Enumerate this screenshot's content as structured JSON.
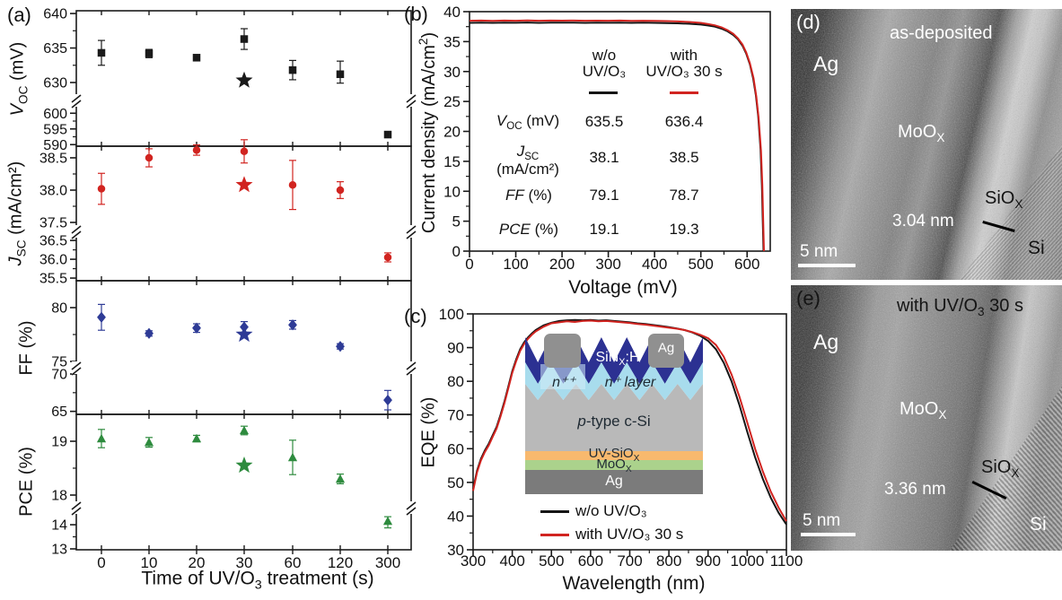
{
  "figure": {
    "panel_labels": {
      "a": "(a)",
      "b": "(b)",
      "c": "(c)",
      "d": "(d)",
      "e": "(e)"
    }
  },
  "panel_a": {
    "x_title": {
      "pre": "Time of UV/O",
      "sub": "3",
      "post": " treatment (s)"
    },
    "axis_titles": {
      "voc": {
        "main": "V",
        "sub": "OC",
        "post": " (mV)"
      },
      "jsc": {
        "main": "J",
        "sub": "SC",
        "post": " (mA/cm²)"
      },
      "ff": {
        "main": "FF",
        "sub": "",
        "post": " (%)"
      },
      "pce": {
        "main": "PCE",
        "sub": "",
        "post": " (%)"
      }
    }
  },
  "panel_b": {
    "x_title": "Voltage (mV)",
    "y_title": {
      "pre": "Current density (mA/cm",
      "sup": "2",
      "post": ")"
    },
    "table": {
      "col_headers": [
        {
          "line1": "w/o",
          "line2": "UV/O₃"
        },
        {
          "line1": "with",
          "line2": "UV/O₃ 30 s"
        }
      ],
      "rows": [
        {
          "label": {
            "main": "V",
            "sub": "OC",
            "post": " (mV)"
          },
          "line2": "",
          "v1": "635.5",
          "v2": "636.4"
        },
        {
          "label": {
            "main": "J",
            "sub": "SC",
            "post": ""
          },
          "line2": "(mA/cm²)",
          "v1": "38.1",
          "v2": "38.5"
        },
        {
          "label": {
            "main": "FF",
            "sub": "",
            "post": " (%)"
          },
          "line2": "",
          "v1": "79.1",
          "v2": "78.7"
        },
        {
          "label": {
            "main": "PCE",
            "sub": "",
            "post": " (%)"
          },
          "line2": "",
          "v1": "19.1",
          "v2": "19.3"
        }
      ]
    }
  },
  "panel_c": {
    "x_title": "Wavelength (nm)",
    "y_title": "EQE (%)",
    "legend": [
      {
        "label": "w/o UV/O₃",
        "color": "#151515"
      },
      {
        "label": "with UV/O₃ 30 s",
        "color": "#d12420"
      }
    ],
    "inset": {
      "ag_top": "Ag",
      "sin": {
        "pre": "SiN",
        "sub": "X",
        "post": ":H"
      },
      "npp": "n⁺⁺",
      "np": "n⁺ layer",
      "ptype": {
        "pre": "p",
        "post": "-type c-Si"
      },
      "uvsio": {
        "pre": "UV-SiO",
        "sub": "X",
        "post": ""
      },
      "moo": {
        "pre": "MoO",
        "sub": "X",
        "post": ""
      },
      "ag_bottom": "Ag",
      "colors": {
        "ag_contact": "#909090",
        "sin": "#2c3192",
        "nplus": "#a8dced",
        "npp_patch": "#d3edf8",
        "si": "#b9b9b9",
        "uvsio": "#f8b96e",
        "moo": "#abd28c",
        "ag_bottom": "#7b7b7b"
      }
    }
  },
  "panel_d": {
    "title": "as-deposited",
    "ag": "Ag",
    "moo": {
      "pre": "MoO",
      "sub": "X"
    },
    "sio": {
      "pre": "SiO",
      "sub": "X"
    },
    "thickness": "3.04 nm",
    "si": "Si",
    "scale": "5 nm"
  },
  "panel_e": {
    "title": {
      "pre": "with UV/O",
      "sub": "3",
      "post": " 30 s"
    },
    "ag": "Ag",
    "moo": {
      "pre": "MoO",
      "sub": "X"
    },
    "sio": {
      "pre": "SiO",
      "sub": "X"
    },
    "thickness": "3.36 nm",
    "si": "Si",
    "scale": "5 nm"
  },
  "chart_data": [
    {
      "id": "a-voc",
      "type": "scatter",
      "marker": "square",
      "color": "#1a1a1a",
      "ylabel": "V_OC (mV)",
      "categories": [
        "0",
        "10",
        "20",
        "30",
        "60",
        "120",
        "300"
      ],
      "values": [
        634.3,
        634.2,
        633.6,
        636.3,
        631.8,
        631.2,
        593.2
      ],
      "errors": [
        1.8,
        0.6,
        0.4,
        1.5,
        1.4,
        1.9,
        0.4
      ],
      "star": {
        "category": "30",
        "value": 630.3
      },
      "yticks": [
        "640",
        "635",
        "630",
        "600",
        "595",
        "590"
      ],
      "axis_break_between": [
        "630",
        "600"
      ]
    },
    {
      "id": "a-jsc",
      "type": "scatter",
      "marker": "circle",
      "color": "#d12420",
      "ylabel": "J_SC (mA/cm2)",
      "categories": [
        "0",
        "10",
        "20",
        "30",
        "60",
        "120",
        "300"
      ],
      "values": [
        38.02,
        38.5,
        38.62,
        38.6,
        38.08,
        38.0,
        36.05
      ],
      "errors": [
        0.24,
        0.14,
        0.08,
        0.18,
        0.38,
        0.13,
        0.12
      ],
      "star": {
        "category": "30",
        "value": 38.08
      },
      "yticks": [
        "38.5",
        "38.0",
        "37.5",
        "36.5",
        "36.0",
        "35.5"
      ],
      "axis_break_between": [
        "37.5",
        "36.5"
      ]
    },
    {
      "id": "a-ff",
      "type": "scatter",
      "marker": "diamond",
      "color": "#2e3b96",
      "ylabel": "FF (%)",
      "categories": [
        "0",
        "10",
        "20",
        "30",
        "60",
        "120",
        "300"
      ],
      "values": [
        79.1,
        77.6,
        78.1,
        78.2,
        78.4,
        76.4,
        66.5
      ],
      "errors": [
        1.2,
        0.25,
        0.4,
        0.5,
        0.4,
        0.25,
        1.3
      ],
      "star": {
        "category": "30",
        "value": 77.5
      },
      "yticks": [
        "80",
        "75",
        "70",
        "65"
      ],
      "axis_break_between": [
        "75",
        "70"
      ]
    },
    {
      "id": "a-pce",
      "type": "scatter",
      "marker": "triangle",
      "color": "#2e8b3e",
      "ylabel": "PCE (%)",
      "categories": [
        "0",
        "10",
        "20",
        "30",
        "60",
        "120",
        "300"
      ],
      "values": [
        19.05,
        18.98,
        19.05,
        19.2,
        18.7,
        18.3,
        14.15
      ],
      "errors": [
        0.17,
        0.09,
        0.06,
        0.08,
        0.32,
        0.09,
        0.28
      ],
      "star": {
        "category": "30",
        "value": 18.55
      },
      "yticks": [
        "19",
        "18",
        "14",
        "13"
      ],
      "axis_break_between": [
        "18",
        "14"
      ]
    },
    {
      "id": "b-jv",
      "type": "line",
      "xlabel": "Voltage (mV)",
      "ylabel": "Current density (mA/cm2)",
      "xlim": [
        0,
        650
      ],
      "ylim": [
        0,
        40
      ],
      "xticks": [
        "0",
        "100",
        "200",
        "300",
        "400",
        "500",
        "600"
      ],
      "yticks": [
        "0",
        "5",
        "10",
        "15",
        "20",
        "25",
        "30",
        "35",
        "40"
      ],
      "series": [
        {
          "name": "w/o UV/O₃",
          "color": "#151515",
          "x": [
            0,
            25,
            50,
            75,
            100,
            125,
            150,
            175,
            200,
            225,
            250,
            275,
            300,
            325,
            350,
            375,
            400,
            425,
            450,
            475,
            500,
            515,
            530,
            545,
            558,
            570,
            580,
            590,
            598,
            606,
            613,
            619,
            624,
            629,
            632,
            635.5
          ],
          "y": [
            38.13,
            38.17,
            38.12,
            38.16,
            38.14,
            38.18,
            38.13,
            38.16,
            38.15,
            38.17,
            38.13,
            38.16,
            38.14,
            38.16,
            38.13,
            38.15,
            38.12,
            38.1,
            38.05,
            37.98,
            37.85,
            37.7,
            37.5,
            37.15,
            36.7,
            36.1,
            35.4,
            34.3,
            33.0,
            31.2,
            28.9,
            26.0,
            22.5,
            17.0,
            11.0,
            0
          ]
        },
        {
          "name": "with UV/O₃ 30 s",
          "color": "#d12420",
          "x": [
            0,
            25,
            50,
            75,
            100,
            125,
            150,
            175,
            200,
            225,
            250,
            275,
            300,
            325,
            350,
            375,
            400,
            425,
            450,
            475,
            500,
            515,
            530,
            545,
            558,
            570,
            580,
            590,
            598,
            606,
            614,
            620,
            625,
            630,
            633,
            636.4
          ],
          "y": [
            38.48,
            38.52,
            38.47,
            38.51,
            38.49,
            38.53,
            38.48,
            38.51,
            38.5,
            38.52,
            38.48,
            38.5,
            38.49,
            38.51,
            38.47,
            38.49,
            38.45,
            38.42,
            38.36,
            38.28,
            38.12,
            37.95,
            37.72,
            37.38,
            36.9,
            36.3,
            35.55,
            34.5,
            33.2,
            31.4,
            28.9,
            25.8,
            22.2,
            16.8,
            11.0,
            0
          ]
        }
      ]
    },
    {
      "id": "c-eqe",
      "type": "line",
      "xlabel": "Wavelength (nm)",
      "ylabel": "EQE (%)",
      "xlim": [
        300,
        1100
      ],
      "ylim": [
        30,
        100
      ],
      "xticks": [
        "300",
        "400",
        "500",
        "600",
        "700",
        "800",
        "900",
        "1000",
        "1100"
      ],
      "yticks": [
        "30",
        "40",
        "50",
        "60",
        "70",
        "80",
        "90",
        "100"
      ],
      "series": [
        {
          "name": "w/o UV/O₃",
          "color": "#151515",
          "x": [
            300,
            310,
            320,
            330,
            340,
            350,
            360,
            370,
            380,
            390,
            400,
            410,
            420,
            430,
            440,
            450,
            460,
            480,
            500,
            520,
            540,
            560,
            580,
            600,
            620,
            640,
            660,
            680,
            700,
            720,
            740,
            760,
            780,
            800,
            820,
            840,
            860,
            880,
            900,
            920,
            940,
            960,
            980,
            1000,
            1020,
            1040,
            1060,
            1080,
            1100
          ],
          "y": [
            48,
            53.5,
            57,
            59.5,
            61.5,
            64,
            66.5,
            70,
            74,
            78.5,
            83,
            86.5,
            89.5,
            91.5,
            93,
            94.2,
            95.2,
            96.6,
            97.4,
            97.9,
            98.1,
            98.2,
            98.1,
            98.2,
            98.0,
            98.1,
            97.9,
            97.7,
            97.5,
            97.2,
            97.0,
            96.7,
            96.4,
            96.1,
            95.7,
            95.2,
            94.5,
            93.5,
            92.0,
            89.5,
            85.5,
            80.0,
            73.0,
            65.0,
            57.5,
            51.0,
            45.5,
            41.0,
            37.5
          ]
        },
        {
          "name": "with UV/O₃ 30 s",
          "color": "#d12420",
          "x": [
            300,
            310,
            320,
            330,
            340,
            350,
            360,
            370,
            380,
            390,
            400,
            410,
            420,
            430,
            440,
            450,
            460,
            480,
            500,
            520,
            540,
            560,
            580,
            600,
            620,
            640,
            660,
            680,
            700,
            720,
            740,
            760,
            780,
            800,
            820,
            840,
            860,
            880,
            900,
            920,
            940,
            960,
            980,
            1000,
            1020,
            1040,
            1060,
            1080,
            1100
          ],
          "y": [
            47.5,
            53,
            56.5,
            59,
            61,
            63.5,
            66,
            69.5,
            73.5,
            78,
            82.5,
            86,
            89,
            91,
            92.6,
            93.8,
            94.8,
            96.2,
            97.2,
            97.5,
            97.8,
            97.6,
            97.9,
            98.0,
            97.8,
            97.9,
            97.7,
            97.5,
            97.3,
            97.0,
            96.8,
            96.5,
            96.2,
            95.9,
            95.6,
            95.2,
            94.6,
            93.8,
            92.8,
            90.8,
            87.3,
            82.0,
            75.5,
            67.8,
            60.0,
            53.2,
            47.3,
            42.5,
            38.5
          ]
        }
      ]
    }
  ]
}
